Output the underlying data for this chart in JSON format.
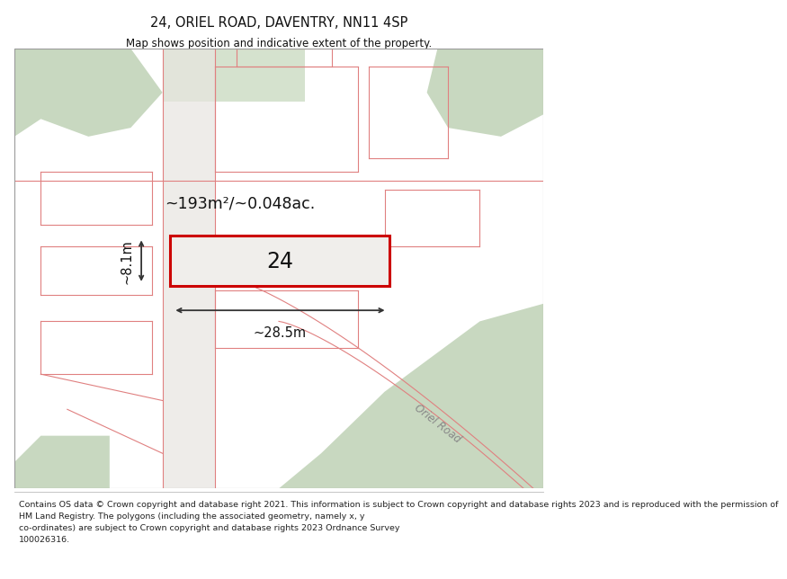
{
  "title_line1": "24, ORIEL ROAD, DAVENTRY, NN11 4SP",
  "title_line2": "Map shows position and indicative extent of the property.",
  "footer_text": "Contains OS data © Crown copyright and database right 2021. This information is subject to Crown copyright and database rights 2023 and is reproduced with the permission of\nHM Land Registry. The polygons (including the associated geometry, namely x, y\nco-ordinates) are subject to Crown copyright and database rights 2023 Ordnance Survey\n100026316.",
  "area_label": "~193m²/~0.048ac.",
  "number_label": "24",
  "dim_width_label": "~28.5m",
  "dim_height_label": "~8.1m",
  "oriel_road_label": "Oriel Road",
  "background_color": "#ffffff",
  "map_bg": "#f5f3f0",
  "green_color": "#c8d8c0",
  "green_color2": "#d5e2ce",
  "road_line_color": "#e08080",
  "highlight_color": "#cc0000",
  "dim_color": "#333333",
  "text_color": "#111111",
  "footer_color": "#222222",
  "oriel_road_color": "#888888"
}
